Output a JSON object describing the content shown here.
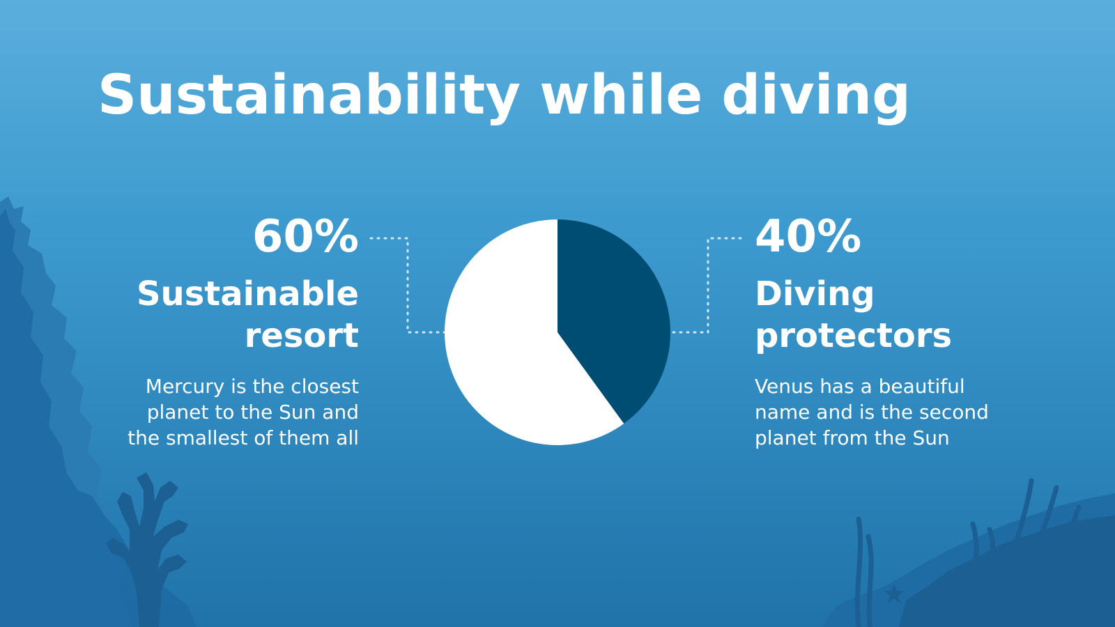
{
  "slide": {
    "title": "Sustainability while diving",
    "left": {
      "percent": "60%",
      "heading_line1": "Sustainable",
      "heading_line2": "resort",
      "desc_line1": "Mercury is the closest",
      "desc_line2": "planet to the Sun and",
      "desc_line3": "the smallest of them all"
    },
    "right": {
      "percent": "40%",
      "heading_line1": "Diving",
      "heading_line2": "protectors",
      "desc_line1": "Venus has a beautiful",
      "desc_line2": "name and is the second",
      "desc_line3": "planet from the Sun"
    }
  },
  "chart_data": {
    "type": "pie",
    "categories": [
      "Sustainable resort",
      "Diving protectors"
    ],
    "values": [
      60,
      40
    ],
    "colors": [
      "#ffffff",
      "#004d73"
    ],
    "start": "12 o'clock",
    "direction": "clockwise, Diving protectors first"
  },
  "colors": {
    "bg_top": "#5aaedd",
    "bg_bottom": "#1f73a8",
    "silhouette_light": "#2a7cb3",
    "silhouette_dark": "#1b5f93",
    "connector": "#cfe8f6"
  }
}
